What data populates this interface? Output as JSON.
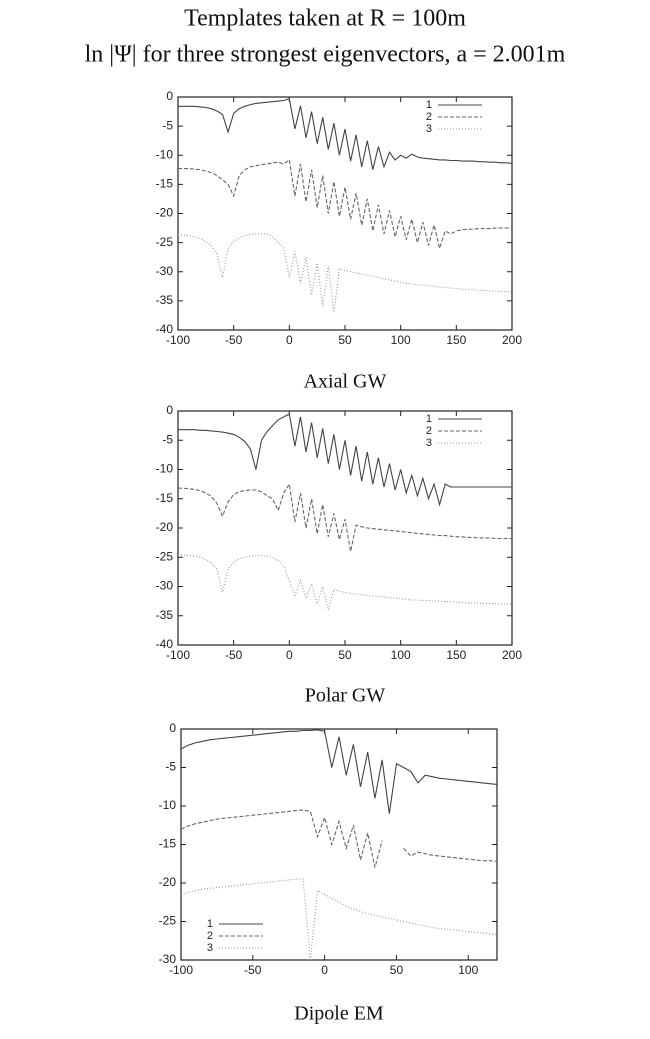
{
  "header": {
    "title": "Templates taken at R = 100m",
    "subtitle": "ln |Ψ| for three strongest eigenvectors, a = 2.001m"
  },
  "chart_data": [
    {
      "type": "line",
      "title": "Axial GW",
      "legend": "top-right",
      "xlim": [
        -100,
        200
      ],
      "xticks": [
        -100,
        -50,
        0,
        50,
        100,
        150,
        200
      ],
      "ylim": [
        -40,
        0
      ],
      "yticks": [
        0,
        -5,
        -10,
        -15,
        -20,
        -25,
        -30,
        -35,
        -40
      ],
      "x": [
        -100,
        -95,
        -90,
        -85,
        -80,
        -75,
        -70,
        -65,
        -60,
        -55,
        -50,
        -45,
        -40,
        -35,
        -30,
        -25,
        -20,
        -15,
        -10,
        -5,
        0,
        5,
        10,
        15,
        20,
        25,
        30,
        35,
        40,
        45,
        50,
        55,
        60,
        65,
        70,
        75,
        80,
        85,
        90,
        95,
        100,
        105,
        110,
        115,
        120,
        125,
        130,
        135,
        140,
        145,
        150,
        155,
        160,
        165,
        170,
        175,
        180,
        185,
        190,
        195,
        200
      ],
      "series": [
        {
          "name": "1",
          "color": "#444444",
          "dash": "solid",
          "values": [
            -1.6,
            -1.6,
            -1.6,
            -1.6,
            -1.7,
            -1.8,
            -2,
            -2.4,
            -3,
            -6,
            -2.8,
            -2,
            -1.6,
            -1.3,
            -1.1,
            -1,
            -0.9,
            -0.8,
            -0.7,
            -0.6,
            -0.3,
            -5.5,
            -1.5,
            -7,
            -2.5,
            -8,
            -3.5,
            -9,
            -4.5,
            -10,
            -5.5,
            -11,
            -6.5,
            -12,
            -7.5,
            -12.5,
            -8.5,
            -12,
            -9.5,
            -10.8,
            -10,
            -10.5,
            -9.8,
            -10.3,
            -10.5,
            -10.6,
            -10.7,
            -10.8,
            -10.8,
            -10.9,
            -10.9,
            -11,
            -11,
            -11,
            -11.1,
            -11.1,
            -11.2,
            -11.2,
            -11.3,
            -11.3,
            -11.4
          ]
        },
        {
          "name": "2",
          "color": "#666666",
          "dash": "dashed",
          "values": [
            -12.3,
            -12.3,
            -12.3,
            -12.4,
            -12.5,
            -12.7,
            -13,
            -13.5,
            -14.2,
            -15,
            -17,
            -13.5,
            -12.5,
            -12,
            -11.8,
            -11.6,
            -11.5,
            -11.3,
            -11.2,
            -11.5,
            -10.8,
            -17,
            -11.5,
            -18,
            -12.5,
            -19,
            -13.5,
            -20,
            -14.5,
            -20.5,
            -15.5,
            -21,
            -16.5,
            -22,
            -17.5,
            -23,
            -18.5,
            -23.5,
            -19.5,
            -24,
            -20.5,
            -24.5,
            -21,
            -25,
            -21.5,
            -25.5,
            -22,
            -26,
            -23,
            -23.5,
            -23,
            -22.8,
            -22.7,
            -22.7,
            -22.6,
            -22.6,
            -22.6,
            -22.5,
            -22.5,
            -22.5,
            -22.5
          ]
        },
        {
          "name": "3",
          "color": "#999999",
          "dash": "dotted",
          "values": [
            -23.6,
            -23.7,
            -23.8,
            -24,
            -24.3,
            -24.8,
            -25.5,
            -27,
            -31,
            -26,
            -24.8,
            -24.2,
            -23.8,
            -23.6,
            -23.5,
            -23.5,
            -23.5,
            -24,
            -25,
            -26,
            -31,
            -26.5,
            -32,
            -27.5,
            -34,
            -28.5,
            -36,
            -29,
            -37,
            -29.5,
            -29.8,
            -30,
            -30.2,
            -30.4,
            -30.6,
            -30.8,
            -31,
            -31.2,
            -31.4,
            -31.6,
            -31.8,
            -32,
            -32.1,
            -32.2,
            -32.3,
            -32.4,
            -32.5,
            -32.6,
            -32.7,
            -32.8,
            -32.9,
            -33,
            -33,
            -33.1,
            -33.2,
            -33.2,
            -33.3,
            -33.3,
            -33.4,
            -33.4,
            -33.5
          ]
        }
      ]
    },
    {
      "type": "line",
      "title": "Polar GW",
      "legend": "top-right",
      "xlim": [
        -100,
        200
      ],
      "xticks": [
        -100,
        -50,
        0,
        50,
        100,
        150,
        200
      ],
      "ylim": [
        -40,
        0
      ],
      "yticks": [
        0,
        -5,
        -10,
        -15,
        -20,
        -25,
        -30,
        -35,
        -40
      ],
      "x": [
        -100,
        -95,
        -90,
        -85,
        -80,
        -75,
        -70,
        -65,
        -60,
        -55,
        -50,
        -45,
        -40,
        -35,
        -30,
        -25,
        -20,
        -15,
        -10,
        -5,
        0,
        5,
        10,
        15,
        20,
        25,
        30,
        35,
        40,
        45,
        50,
        55,
        60,
        65,
        70,
        75,
        80,
        85,
        90,
        95,
        100,
        105,
        110,
        115,
        120,
        125,
        130,
        135,
        140,
        145,
        150,
        155,
        160,
        165,
        170,
        175,
        180,
        185,
        190,
        195,
        200
      ],
      "series": [
        {
          "name": "1",
          "color": "#444444",
          "dash": "solid",
          "values": [
            -3.2,
            -3.2,
            -3.2,
            -3.2,
            -3.3,
            -3.3,
            -3.4,
            -3.5,
            -3.6,
            -3.8,
            -4,
            -4.5,
            -5.2,
            -6.5,
            -10,
            -5,
            -3.5,
            -2.5,
            -1.5,
            -1,
            -0.5,
            -6,
            -1,
            -7,
            -2,
            -8,
            -3,
            -9,
            -4,
            -10,
            -5,
            -11,
            -6,
            -12,
            -7,
            -12.5,
            -8,
            -13,
            -9,
            -13.5,
            -10,
            -14,
            -11,
            -14.5,
            -11.5,
            -15,
            -12.5,
            -16,
            -12.5,
            -13,
            -13,
            -13,
            -13,
            -13,
            -13,
            -13,
            -13,
            -13,
            -13,
            -13,
            -13
          ]
        },
        {
          "name": "2",
          "color": "#666666",
          "dash": "dashed",
          "values": [
            -13.2,
            -13.2,
            -13.3,
            -13.4,
            -13.6,
            -14,
            -14.6,
            -15.8,
            -18,
            -15.5,
            -14.3,
            -13.8,
            -13.6,
            -13.5,
            -13.5,
            -13.8,
            -14.5,
            -15,
            -17,
            -14,
            -12.5,
            -19,
            -14,
            -20,
            -15,
            -21,
            -16,
            -21.5,
            -17.5,
            -22,
            -18.5,
            -24,
            -19.5,
            -19.8,
            -20,
            -20.1,
            -20.2,
            -20.3,
            -20.4,
            -20.5,
            -20.6,
            -20.7,
            -20.8,
            -20.9,
            -21,
            -21.1,
            -21.2,
            -21.3,
            -21.3,
            -21.4,
            -21.5,
            -21.5,
            -21.6,
            -21.6,
            -21.7,
            -21.7,
            -21.7,
            -21.8,
            -21.8,
            -21.8,
            -21.8
          ]
        },
        {
          "name": "3",
          "color": "#999999",
          "dash": "dotted",
          "values": [
            -24.6,
            -24.6,
            -24.7,
            -24.8,
            -25,
            -25.4,
            -26,
            -27,
            -31,
            -27,
            -25.8,
            -25.3,
            -25,
            -24.8,
            -24.7,
            -24.7,
            -24.8,
            -25,
            -25.5,
            -26.5,
            -29,
            -31.5,
            -29,
            -32,
            -29.5,
            -33,
            -30,
            -34,
            -30.5,
            -30.8,
            -31,
            -31.2,
            -31.3,
            -31.4,
            -31.5,
            -31.6,
            -31.7,
            -31.8,
            -31.9,
            -32,
            -32.1,
            -32.2,
            -32.3,
            -32.3,
            -32.4,
            -32.4,
            -32.5,
            -32.5,
            -32.6,
            -32.6,
            -32.7,
            -32.7,
            -32.8,
            -32.8,
            -32.8,
            -32.9,
            -32.9,
            -32.9,
            -33,
            -33,
            -33
          ]
        }
      ]
    },
    {
      "type": "line",
      "title": "Dipole EM",
      "legend": "bottom-left",
      "xlim": [
        -100,
        120
      ],
      "xticks": [
        -100,
        -50,
        0,
        50,
        100
      ],
      "ylim": [
        -30,
        0
      ],
      "yticks": [
        0,
        -5,
        -10,
        -15,
        -20,
        -25,
        -30
      ],
      "x": [
        -100,
        -95,
        -90,
        -85,
        -80,
        -75,
        -70,
        -65,
        -60,
        -55,
        -50,
        -45,
        -40,
        -35,
        -30,
        -25,
        -20,
        -15,
        -10,
        -5,
        0,
        5,
        10,
        15,
        20,
        25,
        30,
        35,
        40,
        45,
        50,
        55,
        60,
        65,
        70,
        75,
        80,
        85,
        90,
        95,
        100,
        105,
        110,
        115,
        120
      ],
      "series": [
        {
          "name": "1",
          "color": "#444444",
          "dash": "solid",
          "values": [
            -2.6,
            -2.1,
            -1.8,
            -1.6,
            -1.4,
            -1.3,
            -1.2,
            -1.1,
            -1,
            -0.9,
            -0.8,
            -0.7,
            -0.6,
            -0.5,
            -0.4,
            -0.3,
            -0.3,
            -0.2,
            -0.2,
            -0.1,
            -0.3,
            -5,
            -1,
            -6,
            -2,
            -7.5,
            -3,
            -9,
            -4,
            -11,
            -4.5,
            -5,
            -5.5,
            -7,
            -6,
            -6.2,
            -6.4,
            -6.5,
            -6.6,
            -6.7,
            -6.8,
            -6.9,
            -7,
            -7.1,
            -7.2
          ]
        },
        {
          "name": "2",
          "color": "#666666",
          "dash": "dashed",
          "values": [
            -13,
            -12.6,
            -12.3,
            -12.1,
            -11.9,
            -11.7,
            -11.6,
            -11.5,
            -11.4,
            -11.3,
            -11.2,
            -11.1,
            -11,
            -10.9,
            -10.8,
            -10.7,
            -10.6,
            -10.5,
            -10.7,
            -14,
            -11.5,
            -15,
            -12,
            -15.5,
            -12.5,
            -17,
            -13.5,
            -18,
            -14.5,
            null,
            null,
            -15.5,
            -16.5,
            -16,
            -16.2,
            -16.4,
            -16.5,
            -16.6,
            -16.7,
            -16.8,
            -16.9,
            -17,
            -17.1,
            -17.1,
            -17.2
          ]
        },
        {
          "name": "3",
          "color": "#999999",
          "dash": "dotted",
          "values": [
            -21.6,
            -21.2,
            -21,
            -20.8,
            -20.7,
            -20.6,
            -20.5,
            -20.4,
            -20.3,
            -20.2,
            -20.1,
            -20,
            -19.9,
            -19.8,
            -19.7,
            -19.6,
            -19.5,
            -19.5,
            -30,
            -21,
            -21.5,
            -22,
            -22.5,
            -23,
            -23.4,
            -23.7,
            -24,
            -24.2,
            -24.4,
            -24.6,
            -24.8,
            -25,
            -25.2,
            -25.4,
            -25.6,
            -25.8,
            -25.9,
            -26,
            -26.1,
            -26.2,
            -26.3,
            -26.4,
            -26.5,
            -26.6,
            -26.7
          ]
        }
      ]
    }
  ]
}
